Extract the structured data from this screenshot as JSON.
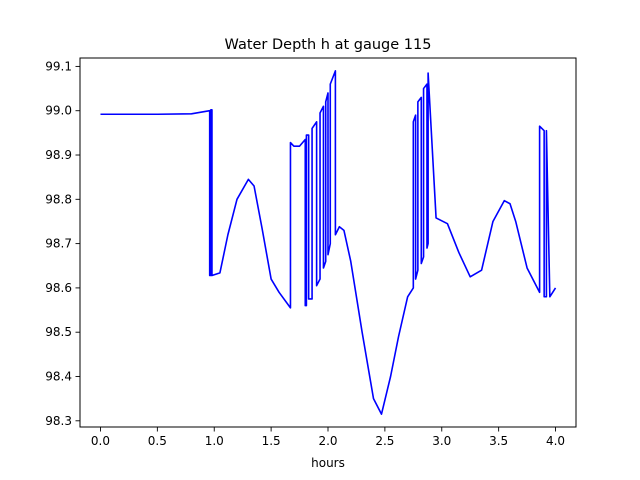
{
  "chart_data": {
    "type": "line",
    "title": "Water Depth h at gauge 115",
    "xlabel": "hours",
    "ylabel": "",
    "xlim": [
      -0.18,
      4.18
    ],
    "ylim": [
      98.286,
      99.119
    ],
    "xticks": [
      "0.0",
      "0.5",
      "1.0",
      "1.5",
      "2.0",
      "2.5",
      "3.0",
      "3.5",
      "4.0"
    ],
    "yticks": [
      "98.3",
      "98.4",
      "98.5",
      "98.6",
      "98.7",
      "98.8",
      "98.9",
      "99.0",
      "99.1"
    ],
    "grid": false,
    "series": [
      {
        "name": "",
        "color": "#0000ff",
        "x": [
          0.0,
          0.5,
          0.8,
          0.96,
          0.96,
          0.97,
          0.97,
          0.98,
          0.98,
          1.05,
          1.12,
          1.2,
          1.3,
          1.35,
          1.42,
          1.5,
          1.57,
          1.67,
          1.67,
          1.7,
          1.75,
          1.8,
          1.8,
          1.81,
          1.81,
          1.83,
          1.83,
          1.86,
          1.86,
          1.9,
          1.9,
          1.93,
          1.93,
          1.96,
          1.96,
          1.98,
          1.98,
          2.0,
          2.0,
          2.02,
          2.02,
          2.065,
          2.065,
          2.1,
          2.14,
          2.2,
          2.3,
          2.4,
          2.47,
          2.55,
          2.62,
          2.7,
          2.75,
          2.75,
          2.77,
          2.77,
          2.79,
          2.79,
          2.82,
          2.82,
          2.84,
          2.84,
          2.87,
          2.87,
          2.88,
          2.88,
          2.95,
          3.05,
          3.15,
          3.25,
          3.35,
          3.45,
          3.55,
          3.6,
          3.65,
          3.75,
          3.85,
          3.86,
          3.86,
          3.9,
          3.9,
          3.92,
          3.92,
          3.95,
          4.0
        ],
        "y": [
          98.992,
          98.992,
          98.993,
          99.0,
          98.628,
          98.628,
          99.002,
          99.002,
          98.628,
          98.634,
          98.72,
          98.8,
          98.845,
          98.83,
          98.735,
          98.62,
          98.59,
          98.555,
          98.928,
          98.92,
          98.92,
          98.935,
          98.56,
          98.56,
          98.945,
          98.945,
          98.575,
          98.575,
          98.96,
          98.975,
          98.605,
          98.62,
          98.995,
          99.01,
          98.645,
          98.66,
          99.02,
          99.04,
          98.675,
          98.7,
          99.06,
          99.09,
          98.72,
          98.738,
          98.73,
          98.66,
          98.5,
          98.35,
          98.315,
          98.4,
          98.49,
          98.58,
          98.6,
          98.975,
          98.99,
          98.62,
          98.64,
          99.02,
          99.03,
          98.655,
          98.67,
          99.05,
          99.06,
          98.69,
          98.7,
          99.085,
          98.758,
          98.745,
          98.68,
          98.625,
          98.64,
          98.75,
          98.797,
          98.79,
          98.75,
          98.645,
          98.595,
          98.59,
          98.965,
          98.955,
          98.58,
          98.58,
          98.955,
          98.58,
          98.6
        ]
      }
    ]
  }
}
